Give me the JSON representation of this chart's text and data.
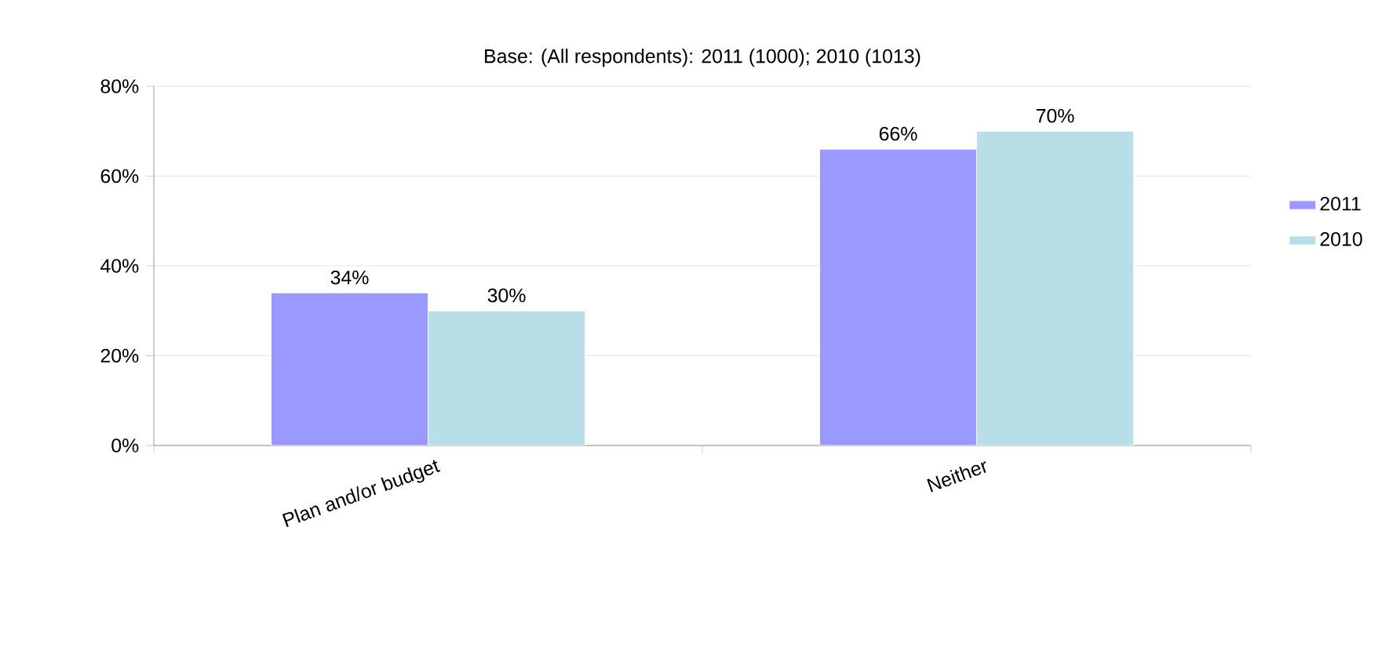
{
  "chart_data": {
    "type": "bar",
    "title": "Base: (All respondents): 2011 (1000); 2010 (1013)",
    "categories": [
      "Plan and/or budget",
      "Neither"
    ],
    "series": [
      {
        "name": "2011",
        "color": "#9999ff",
        "values": [
          34,
          66
        ],
        "value_labels": [
          "34%",
          "66%"
        ]
      },
      {
        "name": "2010",
        "color": "#b8dfe8",
        "values": [
          30,
          70
        ],
        "value_labels": [
          "30%",
          "70%"
        ]
      }
    ],
    "ylim": [
      0,
      80
    ],
    "yticks": [
      {
        "value": 0,
        "label": "0%"
      },
      {
        "value": 20,
        "label": "20%"
      },
      {
        "value": 40,
        "label": "40%"
      },
      {
        "value": 60,
        "label": "60%"
      },
      {
        "value": 80,
        "label": "80%"
      }
    ],
    "grid": "y",
    "legend": "right"
  }
}
